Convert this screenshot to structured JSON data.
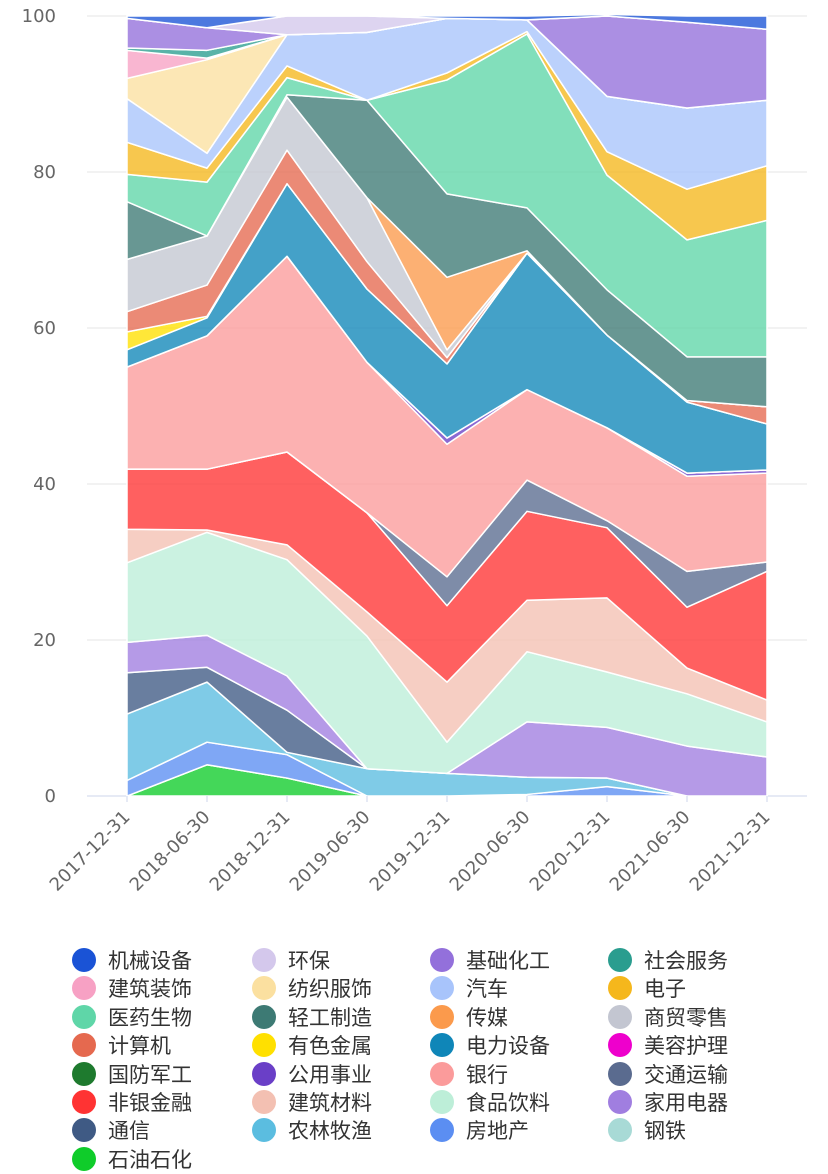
{
  "chart_data": {
    "type": "area",
    "stacked": true,
    "ylim": [
      0,
      100
    ],
    "yticks": [
      0,
      20,
      40,
      60,
      80,
      100
    ],
    "grid": true,
    "legend_position": "bottom",
    "categories": [
      "2017-12-31",
      "2018-06-30",
      "2018-12-31",
      "2019-06-30",
      "2019-12-31",
      "2020-06-30",
      "2020-12-31",
      "2021-06-30",
      "2021-12-31"
    ],
    "series": [
      {
        "name": "机械设备",
        "color": "#1a53d6",
        "values": [
          0.3,
          1.5,
          0,
          0,
          0.3,
          0.5,
          0.2,
          0.8,
          1.7
        ]
      },
      {
        "name": "环保",
        "color": "#d4c8ec",
        "values": [
          0,
          0,
          2.4,
          2.1,
          0,
          0,
          0,
          0,
          0
        ]
      },
      {
        "name": "基础化工",
        "color": "#9370db",
        "values": [
          3.8,
          2.9,
          0,
          0,
          0,
          0,
          10.3,
          11.0,
          9.1
        ]
      },
      {
        "name": "社会服务",
        "color": "#2a9d8f",
        "values": [
          0.3,
          1.0,
          0,
          0,
          0,
          0,
          0,
          0,
          0
        ]
      },
      {
        "name": "建筑装饰",
        "color": "#f7a1c4",
        "values": [
          3.6,
          0.2,
          0,
          0,
          0,
          0,
          0,
          0,
          0
        ]
      },
      {
        "name": "纺织服饰",
        "color": "#fbe0a0",
        "values": [
          2.6,
          12.0,
          0,
          0,
          0,
          0,
          0,
          0,
          0
        ]
      },
      {
        "name": "汽车",
        "color": "#a8c4fb",
        "values": [
          5.6,
          1.9,
          4.0,
          8.7,
          7.0,
          1.5,
          7.1,
          10.4,
          8.4
        ]
      },
      {
        "name": "电子",
        "color": "#f5b71c",
        "values": [
          4.1,
          1.8,
          1.5,
          0,
          0.9,
          0.3,
          3.0,
          6.5,
          7.0
        ]
      },
      {
        "name": "医药生物",
        "color": "#5fd6a8",
        "values": [
          3.5,
          6.9,
          2.2,
          0,
          14.6,
          22.3,
          14.7,
          15.0,
          17.5
        ]
      },
      {
        "name": "轻工制造",
        "color": "#3d7a74",
        "values": [
          7.4,
          0,
          0.3,
          12.5,
          10.7,
          5.5,
          5.8,
          5.6,
          6.4
        ]
      },
      {
        "name": "传媒",
        "color": "#fb9a4c",
        "values": [
          0,
          0,
          0,
          0,
          9.3,
          0.3,
          0,
          0,
          0
        ]
      },
      {
        "name": "商贸零售",
        "color": "#c3c6d1",
        "values": [
          6.7,
          6.3,
          6.8,
          8.2,
          1.0,
          0,
          0,
          0,
          0
        ]
      },
      {
        "name": "计算机",
        "color": "#e5694f",
        "values": [
          2.6,
          4.0,
          4.3,
          3.5,
          0.8,
          0,
          0,
          0.2,
          2.2
        ]
      },
      {
        "name": "有色金属",
        "color": "#ffe000",
        "values": [
          2.3,
          0.2,
          0,
          0,
          0,
          0,
          0,
          0,
          0
        ]
      },
      {
        "name": "电力设备",
        "color": "#0f86b8",
        "values": [
          2.2,
          2.3,
          9.3,
          9.4,
          9.5,
          17.5,
          11.9,
          9.1,
          5.9
        ]
      },
      {
        "name": "美容护理",
        "color": "#ee00cc",
        "values": [
          0,
          0,
          0,
          0,
          0,
          0,
          0,
          0,
          0
        ]
      },
      {
        "name": "国防军工",
        "color": "#1e7a2e",
        "values": [
          0,
          0,
          0,
          0,
          0,
          0,
          0,
          0,
          0
        ]
      },
      {
        "name": "公用事业",
        "color": "#6a3fc7",
        "values": [
          0,
          0,
          0,
          0,
          0.8,
          0,
          0,
          0.4,
          0.4
        ]
      },
      {
        "name": "银行",
        "color": "#fb9b9b",
        "values": [
          13.1,
          17.1,
          25.1,
          19.3,
          17.0,
          11.6,
          11.9,
          12.2,
          11.4
        ]
      },
      {
        "name": "交通运输",
        "color": "#5a6b8f",
        "values": [
          0,
          0,
          0,
          0,
          3.7,
          4.0,
          0.9,
          4.6,
          1.2
        ]
      },
      {
        "name": "非银金融",
        "color": "#ff3333",
        "values": [
          7.7,
          7.8,
          11.9,
          12.7,
          9.8,
          11.4,
          9.0,
          7.8,
          16.5
        ]
      },
      {
        "name": "建筑材料",
        "color": "#f3c0b2",
        "values": [
          4.3,
          0.3,
          1.9,
          3.1,
          7.7,
          6.6,
          9.5,
          3.3,
          2.8
        ]
      },
      {
        "name": "食品饮料",
        "color": "#bdeed8",
        "values": [
          10.2,
          13.2,
          14.9,
          17.0,
          4.0,
          9.0,
          7.1,
          6.7,
          4.5
        ]
      },
      {
        "name": "家用电器",
        "color": "#a07ee0",
        "values": [
          3.9,
          4.1,
          4.4,
          0,
          0,
          7.1,
          6.5,
          6.4,
          5.0
        ]
      },
      {
        "name": "通信",
        "color": "#3f5a84",
        "values": [
          5.3,
          1.9,
          5.4,
          0,
          0,
          0,
          0,
          0,
          0
        ]
      },
      {
        "name": "农林牧渔",
        "color": "#5bbde0",
        "values": [
          8.5,
          7.7,
          0.3,
          3.5,
          2.9,
          2.2,
          1.1,
          0,
          0
        ]
      },
      {
        "name": "房地产",
        "color": "#5b8ef2",
        "values": [
          2.0,
          2.9,
          3.0,
          0,
          0,
          0.2,
          1.2,
          0,
          0
        ]
      },
      {
        "name": "钢铁",
        "color": "#a8dad6",
        "values": [
          0,
          0,
          0,
          0,
          0,
          0,
          0,
          0,
          0
        ]
      },
      {
        "name": "石油石化",
        "color": "#0fcc2a",
        "values": [
          0,
          4.0,
          2.3,
          0,
          0,
          0,
          0,
          0,
          0
        ]
      }
    ]
  }
}
